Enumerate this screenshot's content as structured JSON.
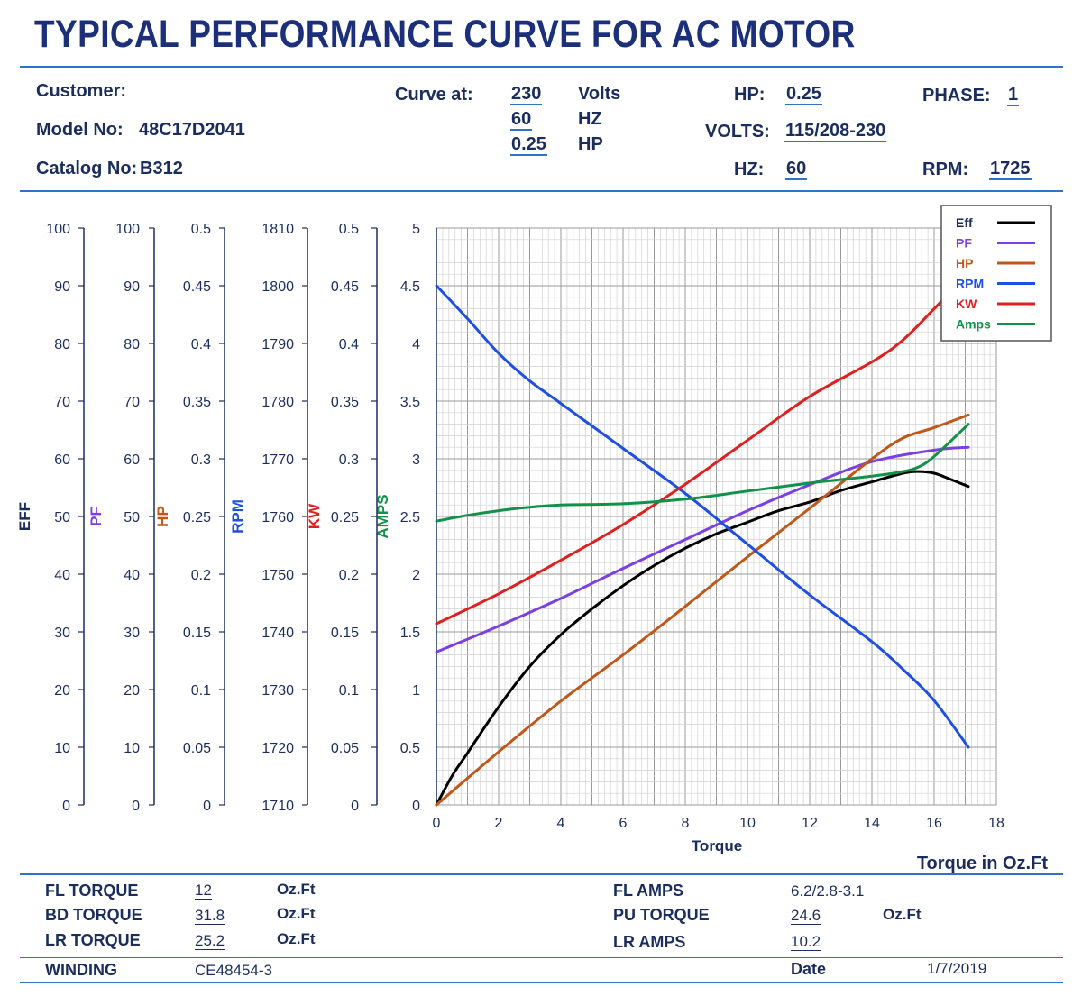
{
  "title": "TYPICAL PERFORMANCE CURVE FOR AC MOTOR",
  "header": {
    "customer_label": "Customer:",
    "model_label": "Model No:",
    "model_value": "48C17D2041",
    "catalog_label": "Catalog No:",
    "catalog_value": "B312",
    "curve_at_label": "Curve at:",
    "curve_at_values": [
      "230",
      "60",
      "0.25"
    ],
    "curve_at_units": [
      "Volts",
      "HZ",
      "HP"
    ],
    "hp_label": "HP:",
    "hp_value": "0.25",
    "volts_label": "VOLTS:",
    "volts_value": "115/208-230",
    "hz_label": "HZ:",
    "hz_value": "60",
    "phase_label": "PHASE:",
    "phase_value": "1",
    "rpm_label": "RPM:",
    "rpm_value": "1725"
  },
  "chart_data": {
    "type": "line",
    "xlabel": "Torque",
    "xlabel_secondary": "Torque in Oz.Ft",
    "xlim": [
      0,
      18
    ],
    "x_ticks": [
      "0",
      "2",
      "4",
      "6",
      "8",
      "10",
      "12",
      "14",
      "16",
      "18"
    ],
    "axes": [
      {
        "label": "EFF",
        "color": "#1a2d5e",
        "ticks": [
          "0",
          "10",
          "20",
          "30",
          "40",
          "50",
          "60",
          "70",
          "80",
          "90",
          "100"
        ]
      },
      {
        "label": "PF",
        "color": "#7b3fe4",
        "ticks": [
          "0",
          "10",
          "20",
          "30",
          "40",
          "50",
          "60",
          "70",
          "80",
          "90",
          "100"
        ]
      },
      {
        "label": "HP",
        "color": "#c0561a",
        "ticks": [
          "0",
          "0.05",
          "0.1",
          "0.15",
          "0.2",
          "0.25",
          "0.3",
          "0.35",
          "0.4",
          "0.45",
          "0.5"
        ]
      },
      {
        "label": "RPM",
        "color": "#1f4fe0",
        "ticks": [
          "1710",
          "1720",
          "1730",
          "1740",
          "1750",
          "1760",
          "1770",
          "1780",
          "1790",
          "1800",
          "1810"
        ]
      },
      {
        "label": "KW",
        "color": "#e01f1f",
        "ticks": [
          "0",
          "0.05",
          "0.1",
          "0.15",
          "0.2",
          "0.25",
          "0.3",
          "0.35",
          "0.4",
          "0.45",
          "0.5"
        ]
      },
      {
        "label": "AMPS",
        "color": "#12914a",
        "ticks": [
          "0",
          "0.5",
          "1",
          "1.5",
          "2",
          "2.5",
          "3",
          "3.5",
          "4",
          "4.5",
          "5"
        ]
      }
    ],
    "ylim_amps": [
      0,
      5
    ],
    "legend_position": "top-right",
    "grid": true,
    "series": [
      {
        "name": "Eff",
        "color": "#000000",
        "axis": "EFF",
        "x": [
          0,
          0.5,
          1,
          2,
          3,
          4,
          5,
          6,
          7,
          8,
          9,
          10,
          11,
          12,
          13,
          14,
          15,
          15.5,
          16,
          16.5,
          17.1
        ],
        "y": [
          0,
          5,
          9,
          17,
          24,
          29.5,
          34,
          38,
          41.5,
          44.5,
          47,
          49,
          51,
          52.5,
          54.5,
          56,
          57.5,
          57.8,
          57.5,
          56.5,
          55.2
        ]
      },
      {
        "name": "PF",
        "color": "#7b3fe4",
        "axis": "PF",
        "x": [
          0,
          2,
          4,
          6,
          8,
          10,
          12,
          14,
          16,
          17.1
        ],
        "y": [
          26.5,
          31,
          35.8,
          41,
          46,
          51,
          55.5,
          59.5,
          61.5,
          62
        ]
      },
      {
        "name": "HP",
        "color": "#c0561a",
        "axis": "HP",
        "x": [
          0,
          2,
          4,
          6,
          8,
          10,
          12,
          14,
          15,
          16,
          17.1
        ],
        "y": [
          0,
          0.046,
          0.09,
          0.13,
          0.172,
          0.215,
          0.257,
          0.3,
          0.318,
          0.327,
          0.338
        ]
      },
      {
        "name": "RPM",
        "color": "#1f4fe0",
        "axis": "RPM",
        "x": [
          0,
          1,
          2,
          3,
          4,
          6,
          8,
          10,
          12,
          14,
          15,
          16,
          17.1
        ],
        "y": [
          1800,
          1794.3,
          1788.3,
          1783.5,
          1779.6,
          1771.8,
          1764,
          1755.2,
          1746.4,
          1738.3,
          1733.5,
          1728.1,
          1720
        ]
      },
      {
        "name": "KW",
        "color": "#e01f1f",
        "axis": "KW",
        "x": [
          0,
          2,
          4,
          6,
          8,
          10,
          12,
          14,
          15,
          16,
          16.5,
          17.1
        ],
        "y": [
          0.157,
          0.183,
          0.212,
          0.243,
          0.278,
          0.316,
          0.354,
          0.384,
          0.403,
          0.43,
          0.444,
          0.46
        ]
      },
      {
        "name": "Amps",
        "color": "#12914a",
        "axis": "AMPS",
        "x": [
          0,
          1,
          2,
          3,
          4,
          6,
          8,
          10,
          12,
          14,
          15,
          15.5,
          16,
          17.1
        ],
        "y": [
          2.46,
          2.51,
          2.55,
          2.58,
          2.6,
          2.61,
          2.65,
          2.72,
          2.79,
          2.85,
          2.89,
          2.93,
          3.02,
          3.3
        ]
      }
    ]
  },
  "footer": {
    "rows": [
      {
        "label": "FL TORQUE",
        "value": "12",
        "unit": "Oz.Ft"
      },
      {
        "label": "BD TORQUE",
        "value": "31.8",
        "unit": "Oz.Ft"
      },
      {
        "label": "LR TORQUE",
        "value": "25.2",
        "unit": "Oz.Ft"
      }
    ],
    "right_rows": [
      {
        "label": "FL AMPS",
        "value": "6.2/2.8-3.1",
        "unit": ""
      },
      {
        "label": "PU TORQUE",
        "value": "24.6",
        "unit": "Oz.Ft"
      },
      {
        "label": "LR AMPS",
        "value": "10.2",
        "unit": ""
      }
    ],
    "winding_label": "WINDING",
    "winding_value": "CE48454-3",
    "date_label": "Date",
    "date_value": "1/7/2019"
  }
}
